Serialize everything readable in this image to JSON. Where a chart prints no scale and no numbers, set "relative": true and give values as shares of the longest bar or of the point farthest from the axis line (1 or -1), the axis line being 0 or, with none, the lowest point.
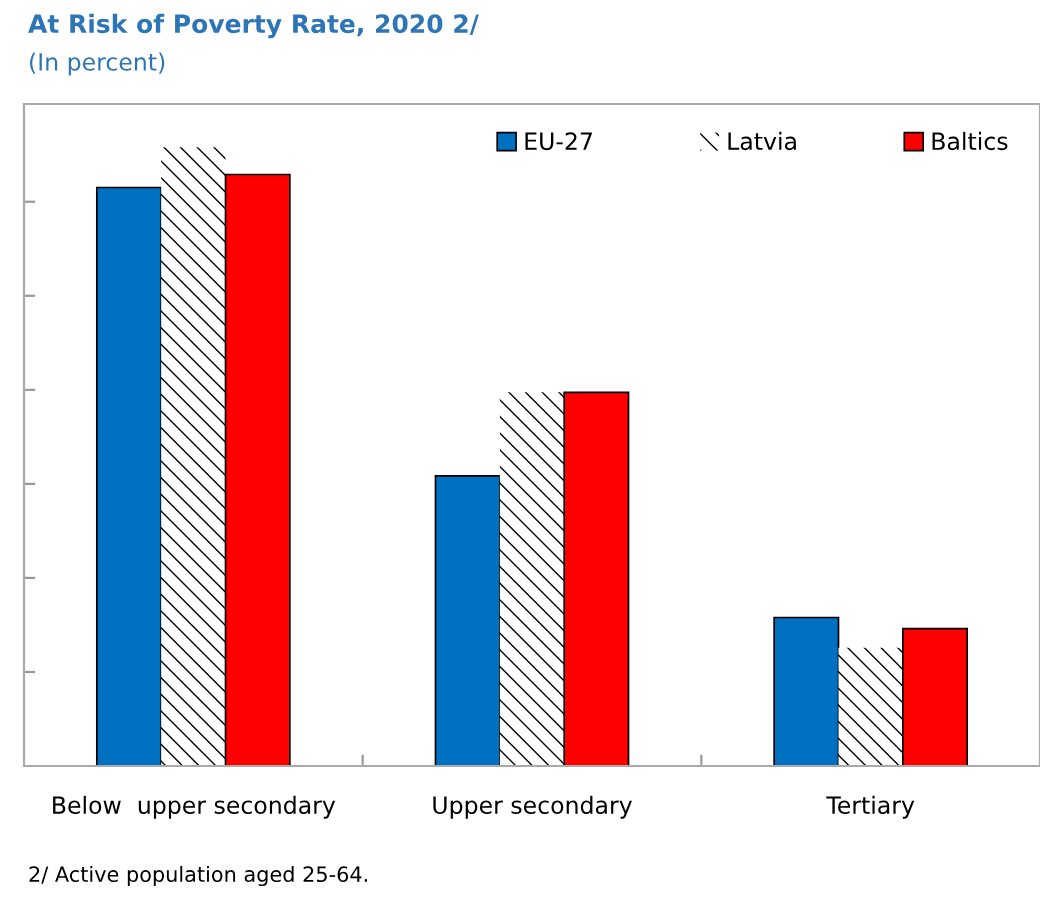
{
  "chart_data": {
    "type": "bar",
    "title": "At Risk of Poverty Rate, 2020 2/",
    "subtitle": "(In percent)",
    "relative": true,
    "categories": [
      "Below  upper secondary",
      "Upper secondary",
      "Tertiary"
    ],
    "series": [
      {
        "name": "EU-27",
        "color": "#0070c0",
        "values": [
          0.935,
          0.469,
          0.24
        ]
      },
      {
        "name": "Latvia",
        "color": "#ffffff",
        "values": [
          1,
          0.604,
          0.191
        ]
      },
      {
        "name": "Baltics",
        "color": "#ff0000",
        "values": [
          0.956,
          0.604,
          0.222
        ]
      }
    ],
    "legend": "top right",
    "grid": false,
    "annotations": [
      "2/ Active population aged 25-64."
    ]
  }
}
